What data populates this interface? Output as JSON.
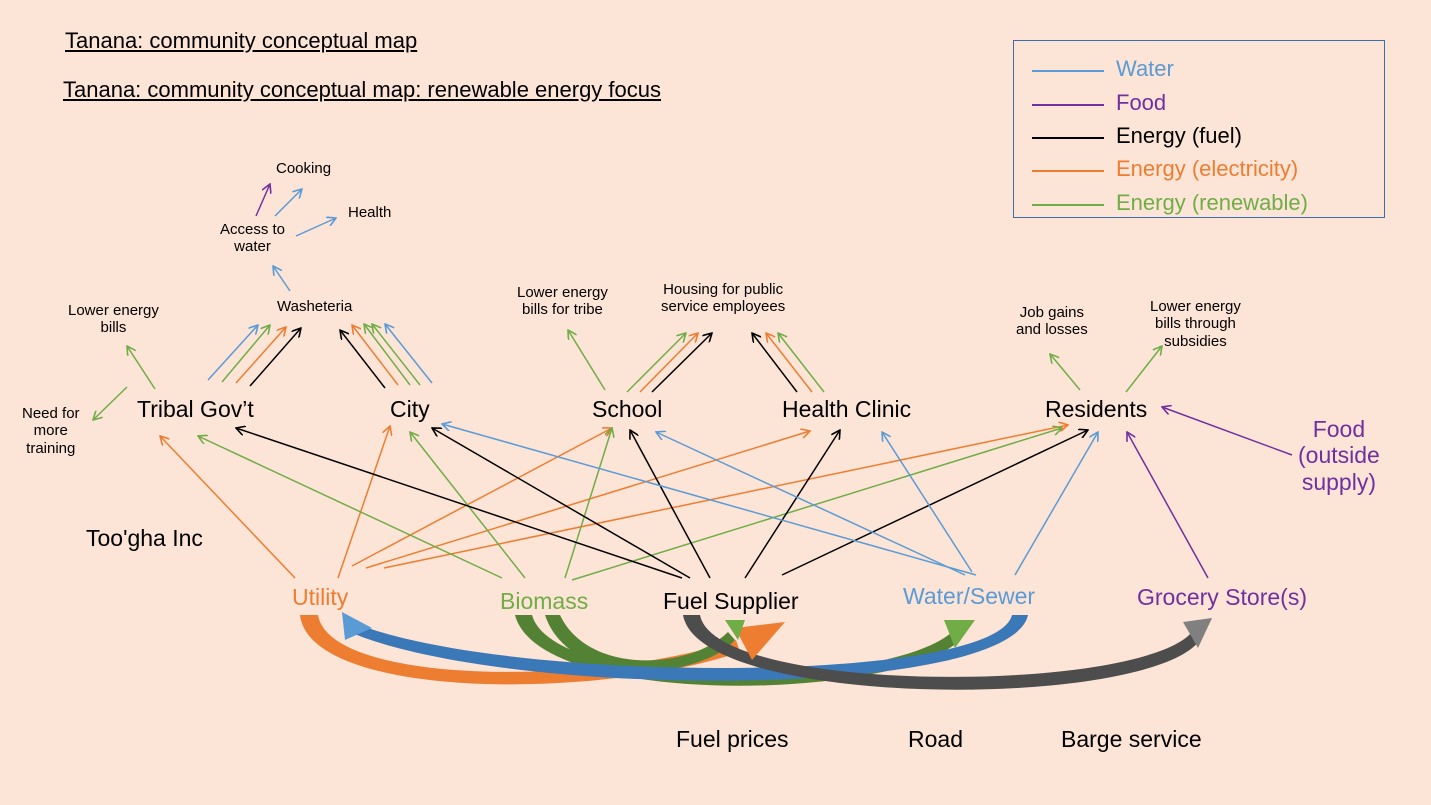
{
  "titles": {
    "title1": "Tanana: community conceptual map",
    "title2": "Tanana: community conceptual map: renewable energy focus"
  },
  "legend": {
    "items": [
      {
        "label": "Water",
        "color": "#5b9bd5"
      },
      {
        "label": "Food",
        "color": "#7030a0"
      },
      {
        "label": "Energy (fuel)",
        "color": "#000000"
      },
      {
        "label": "Energy (electricity)",
        "color": "#ed7d31"
      },
      {
        "label": "Energy (renewable)",
        "color": "#70ad47"
      }
    ]
  },
  "outcomes": {
    "cooking": "Cooking",
    "health": "Health",
    "access_water_1": "Access to",
    "access_water_2": "water",
    "washeteria": "Washeteria",
    "lower_bills_1": "Lower energy",
    "lower_bills_2": "bills",
    "training_1": "Need for",
    "training_2": "more",
    "training_3": "training",
    "tribe_bills_1": "Lower energy",
    "tribe_bills_2": "bills for tribe",
    "housing_1": "Housing for public",
    "housing_2": "service employees",
    "jobs_1": "Job gains",
    "jobs_2": "and losses",
    "subsidies_1": "Lower energy",
    "subsidies_2": "bills through",
    "subsidies_3": "subsidies"
  },
  "nodes": {
    "tribal_gov": "Tribal Gov’t",
    "city": "City",
    "school": "School",
    "health_clinic": "Health Clinic",
    "residents": "Residents",
    "food_1": "Food",
    "food_2": "(outside",
    "food_3": "supply)",
    "toogha": "Too'gha Inc",
    "utility": "Utility",
    "biomass": "Biomass",
    "fuel_supplier": "Fuel Supplier",
    "water_sewer": "Water/Sewer",
    "grocery": "Grocery Store(s)"
  },
  "drivers": {
    "fuel_prices": "Fuel prices",
    "road": "Road",
    "barge": "Barge service"
  },
  "colors": {
    "background": "#fce4d6",
    "water": "#5b9bd5",
    "food": "#7030a0",
    "fuel": "#000000",
    "electricity": "#ed7d31",
    "renewable": "#70ad47",
    "grey_flow": "#808080"
  }
}
